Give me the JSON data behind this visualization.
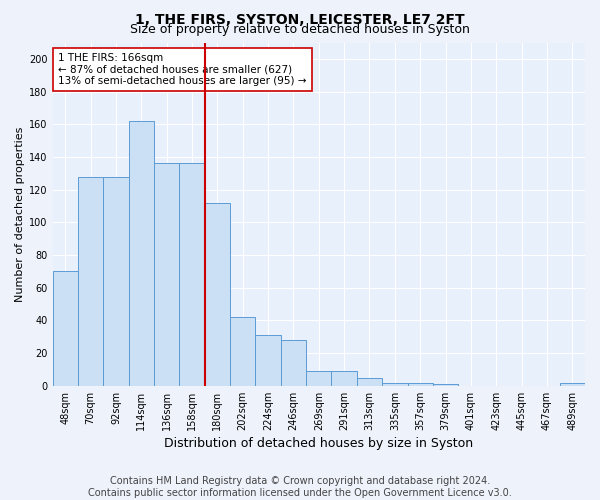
{
  "title": "1, THE FIRS, SYSTON, LEICESTER, LE7 2FT",
  "subtitle": "Size of property relative to detached houses in Syston",
  "xlabel": "Distribution of detached houses by size in Syston",
  "ylabel": "Number of detached properties",
  "categories": [
    "48sqm",
    "70sqm",
    "92sqm",
    "114sqm",
    "136sqm",
    "158sqm",
    "180sqm",
    "202sqm",
    "224sqm",
    "246sqm",
    "269sqm",
    "291sqm",
    "313sqm",
    "335sqm",
    "357sqm",
    "379sqm",
    "401sqm",
    "423sqm",
    "445sqm",
    "467sqm",
    "489sqm"
  ],
  "values": [
    70,
    128,
    128,
    162,
    136,
    136,
    112,
    42,
    31,
    28,
    9,
    9,
    5,
    2,
    2,
    1,
    0,
    0,
    0,
    0,
    2
  ],
  "bar_color": "#cce0f5",
  "bar_edge_color": "#5b9bd5",
  "red_line_index": 6,
  "annotation_text": "1 THE FIRS: 166sqm\n← 87% of detached houses are smaller (627)\n13% of semi-detached houses are larger (95) →",
  "annotation_box_facecolor": "#ffffff",
  "annotation_box_edgecolor": "#cc0000",
  "red_line_color": "#cc0000",
  "footer_line1": "Contains HM Land Registry data © Crown copyright and database right 2024.",
  "footer_line2": "Contains public sector information licensed under the Open Government Licence v3.0.",
  "ylim": [
    0,
    210
  ],
  "yticks": [
    0,
    20,
    40,
    60,
    80,
    100,
    120,
    140,
    160,
    180,
    200
  ],
  "plot_bg_color": "#e8f0fb",
  "fig_bg_color": "#edf2fb",
  "grid_color": "#ffffff",
  "title_fontsize": 10,
  "subtitle_fontsize": 9,
  "xlabel_fontsize": 9,
  "ylabel_fontsize": 8,
  "tick_fontsize": 7,
  "annotation_fontsize": 7.5,
  "footer_fontsize": 7
}
